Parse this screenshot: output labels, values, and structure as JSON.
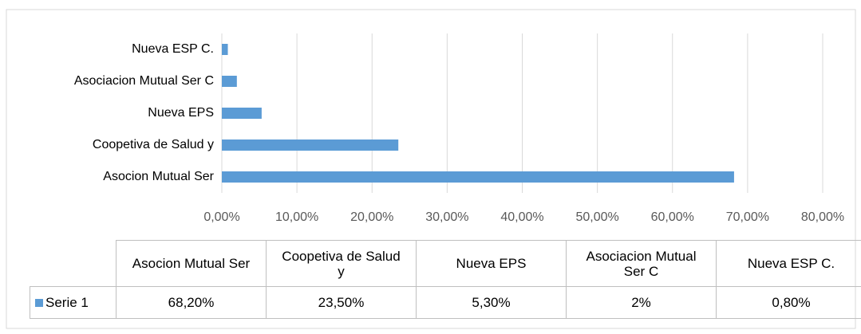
{
  "chart_data": {
    "type": "bar",
    "orientation": "horizontal",
    "categories": [
      "Asocion  Mutual Ser",
      "Coopetiva de Salud y",
      "Nueva EPS",
      "Asociacion Mutual Ser C",
      "Nueva ESP C."
    ],
    "series": [
      {
        "name": "Serie 1",
        "color": "#5b9bd5",
        "values": [
          68.2,
          23.5,
          5.3,
          2,
          0.8
        ],
        "value_labels": [
          "68,20%",
          "23,50%",
          "5,30%",
          "2%",
          "0,80%"
        ]
      }
    ],
    "xlim": [
      0,
      80
    ],
    "xticks": [
      {
        "value": 0,
        "label": "0,00%"
      },
      {
        "value": 10,
        "label": "10,00%"
      },
      {
        "value": 20,
        "label": "20,00%"
      },
      {
        "value": 30,
        "label": "30,00%"
      },
      {
        "value": 40,
        "label": "40,00%"
      },
      {
        "value": 50,
        "label": "50,00%"
      },
      {
        "value": 60,
        "label": "60,00%"
      },
      {
        "value": 70,
        "label": "70,00%"
      },
      {
        "value": 80,
        "label": "80,00%"
      }
    ],
    "grid": true
  }
}
